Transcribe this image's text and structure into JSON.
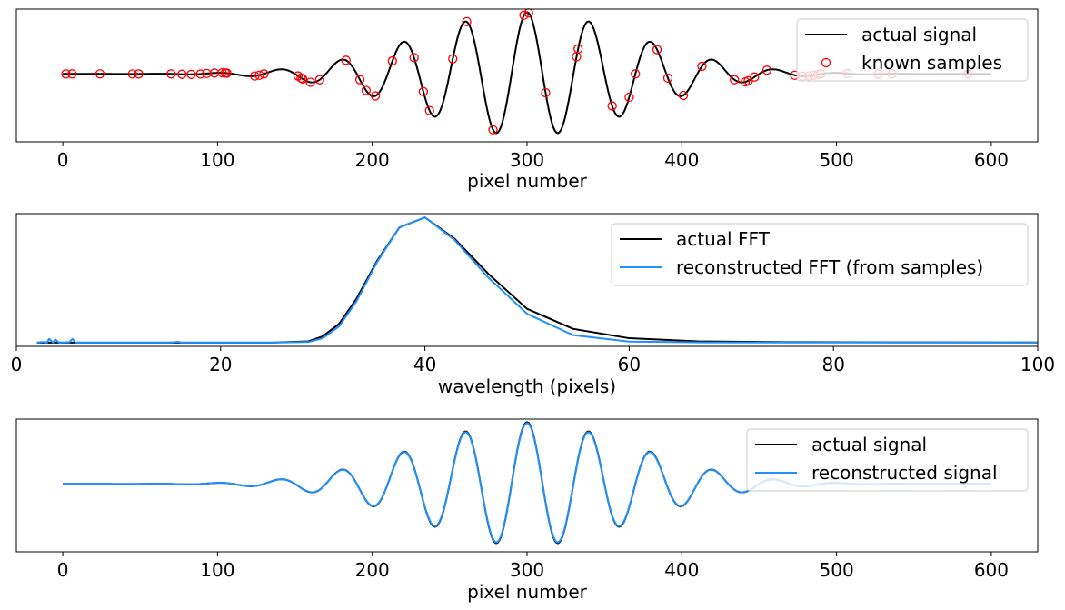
{
  "chart_data": [
    {
      "type": "line",
      "title": "",
      "xlabel": "pixel number",
      "ylabel": "",
      "xlim": [
        -30,
        630
      ],
      "ylim": [
        -1.1,
        1.05
      ],
      "xticks": [
        0,
        100,
        200,
        300,
        400,
        500,
        600
      ],
      "legend_position": "top-right",
      "series": [
        {
          "name": "actual signal",
          "kind": "line",
          "color": "#000000",
          "signal": {
            "x_start": 0,
            "x_end": 600,
            "center": 300,
            "period": 40,
            "sigma": 70,
            "amplitude": 1,
            "phase": "cos"
          }
        },
        {
          "name": "known samples",
          "kind": "markers",
          "color": "#ff0000",
          "x": [
            2,
            6,
            24,
            45,
            49,
            70,
            77,
            83,
            89,
            93,
            98,
            103,
            105,
            106,
            124,
            127,
            130,
            152,
            154,
            155,
            160,
            166,
            183,
            192,
            196,
            202,
            213,
            227,
            233,
            237,
            252,
            261,
            278,
            298,
            301,
            312,
            332,
            333,
            355,
            366,
            370,
            384,
            391,
            401,
            413,
            434,
            441,
            443,
            447,
            455,
            473,
            478,
            482,
            485,
            488,
            490,
            507,
            527,
            536,
            585
          ]
        }
      ]
    },
    {
      "type": "line",
      "title": "",
      "xlabel": "wavelength (pixels)",
      "ylabel": "",
      "xlim": [
        0,
        100
      ],
      "ylim": [
        -0.03,
        1.03
      ],
      "xticks": [
        0,
        20,
        40,
        60,
        80,
        100
      ],
      "legend_position": "top-right",
      "series": [
        {
          "name": "actual FFT",
          "color": "#000000",
          "x": [
            2,
            5,
            10,
            15,
            20,
            25,
            28.6,
            30,
            31.6,
            33.3,
            35.3,
            37.5,
            40,
            42.9,
            46.2,
            50,
            54.5,
            60,
            66.7,
            75,
            85.7,
            100
          ],
          "y": [
            0,
            0,
            0,
            0,
            0,
            0,
            0.01,
            0.05,
            0.15,
            0.35,
            0.65,
            0.92,
            1.0,
            0.83,
            0.55,
            0.27,
            0.11,
            0.035,
            0.01,
            0.004,
            0.002,
            0.001
          ]
        },
        {
          "name": "reconstructed FFT (from samples)",
          "color": "#1e90ff",
          "x": [
            2,
            2.6,
            3,
            3.2,
            3.6,
            3.8,
            4.2,
            5.2,
            5.5,
            5.8,
            6.5,
            10,
            15,
            15.8,
            16.2,
            20,
            25,
            28.6,
            30,
            31.6,
            33.3,
            35.3,
            37.5,
            40,
            42.9,
            46.2,
            50,
            54.5,
            60,
            66.7,
            75,
            85.7,
            100
          ],
          "y": [
            0,
            0.005,
            0,
            0.03,
            0,
            0.025,
            0,
            0.004,
            0.03,
            0,
            0,
            0,
            0,
            0.006,
            0,
            0,
            0,
            0.005,
            0.035,
            0.13,
            0.33,
            0.64,
            0.92,
            1.0,
            0.82,
            0.52,
            0.23,
            0.06,
            0.008,
            0.002,
            0.001,
            0.001,
            0.001
          ]
        }
      ]
    },
    {
      "type": "line",
      "title": "",
      "xlabel": "pixel number",
      "ylabel": "",
      "xlim": [
        -30,
        630
      ],
      "ylim": [
        -1.1,
        1.05
      ],
      "xticks": [
        0,
        100,
        200,
        300,
        400,
        500,
        600
      ],
      "legend_position": "top-right",
      "series": [
        {
          "name": "actual signal",
          "color": "#000000",
          "signal": {
            "x_start": 0,
            "x_end": 600,
            "center": 300,
            "period": 40,
            "sigma": 70,
            "amplitude": 1,
            "phase": "cos"
          }
        },
        {
          "name": "reconstructed signal",
          "color": "#1e90ff",
          "signal": {
            "x_start": 0,
            "x_end": 600,
            "center": 300,
            "period": 40,
            "sigma": 70,
            "amplitude": 0.985,
            "phase": "cos"
          }
        }
      ]
    }
  ]
}
